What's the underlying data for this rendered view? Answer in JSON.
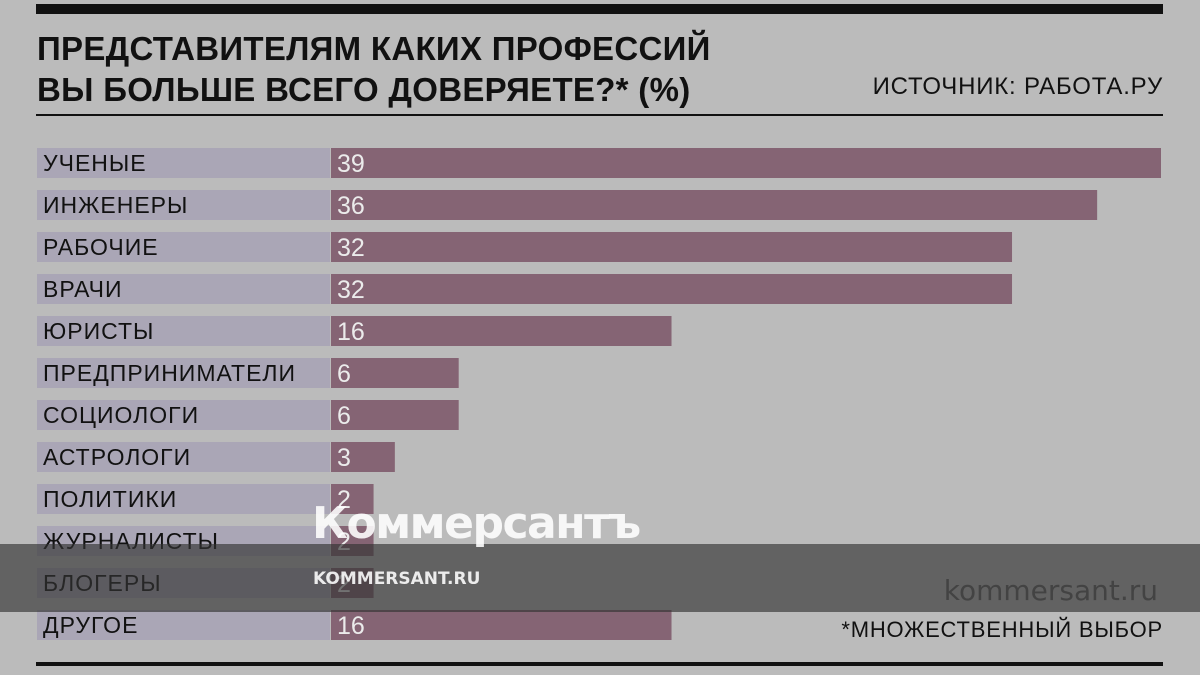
{
  "header": {
    "title_line1": "ПРЕДСТАВИТЕЛЯМ КАКИХ ПРОФЕССИЙ",
    "title_line2": "ВЫ БОЛЬШЕ ВСЕГО ДОВЕРЯЕТЕ?* (%)",
    "source": "ИСТОЧНИК: РАБОТА.РУ"
  },
  "footnote": "*МНОЖЕСТВЕННЫЙ ВЫБОР",
  "watermark": {
    "logo": "Коммерсантъ",
    "url_small": "KOMMERSANT.RU",
    "url_large": "kommersant.ru"
  },
  "colors": {
    "background": "#bbbbbb",
    "bar": "#856474",
    "label_bg": "#aaa6b6",
    "value_text": "#ebebeb",
    "label_text": "#111111"
  },
  "chart_data": {
    "type": "bar",
    "orientation": "horizontal",
    "title": "ПРЕДСТАВИТЕЛЯМ КАКИХ ПРОФЕССИЙ ВЫ БОЛЬШЕ ВСЕГО ДОВЕРЯЕТЕ?* (%)",
    "categories": [
      "УЧЕНЫЕ",
      "ИНЖЕНЕРЫ",
      "РАБОЧИЕ",
      "ВРАЧИ",
      "ЮРИСТЫ",
      "ПРЕДПРИНИМАТЕЛИ",
      "СОЦИОЛОГИ",
      "АСТРОЛОГИ",
      "ПОЛИТИКИ",
      "ЖУРНАЛИСТЫ",
      "БЛОГЕРЫ",
      "ДРУГОЕ"
    ],
    "values": [
      39,
      36,
      32,
      32,
      16,
      6,
      6,
      3,
      2,
      2,
      2,
      16
    ],
    "xlim": [
      0,
      39
    ],
    "grid": false,
    "legend": "none"
  }
}
